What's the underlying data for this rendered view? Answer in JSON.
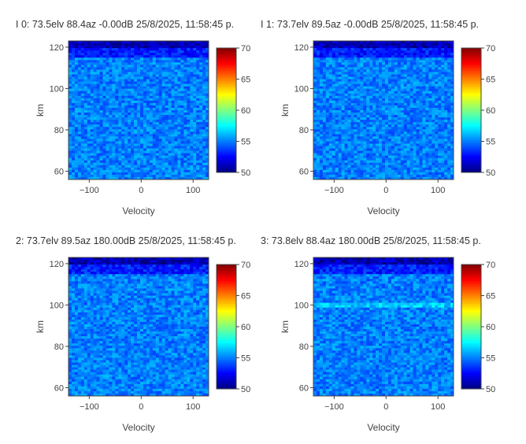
{
  "chart_data": [
    {
      "type": "heatmap",
      "title": "I 0: 73.5elv 88.4az -0.00dB 25/8/2025, 11:58:45 p.",
      "xlabel": "Velocity",
      "ylabel": "km",
      "xlim": [
        -140,
        130
      ],
      "ylim": [
        56,
        123
      ],
      "x_ticks": [
        -100,
        0,
        100
      ],
      "y_ticks": [
        60,
        80,
        100,
        120
      ],
      "colorbar": {
        "min": 50,
        "max": 70,
        "ticks": [
          50,
          55,
          60,
          65,
          70
        ],
        "colorscale": "jet"
      },
      "bands": [
        {
          "from_km": 56,
          "to_km": 115,
          "value": 55.0
        },
        {
          "from_km": 115,
          "to_km": 119,
          "value": 53.0
        },
        {
          "from_km": 119,
          "to_km": 123,
          "value": 51.0
        }
      ],
      "grid": false
    },
    {
      "type": "heatmap",
      "title": "I 1: 73.7elv 89.5az -0.00dB 25/8/2025, 11:58:45 p.",
      "xlabel": "Velocity",
      "ylabel": "km",
      "xlim": [
        -140,
        130
      ],
      "ylim": [
        56,
        123
      ],
      "x_ticks": [
        -100,
        0,
        100
      ],
      "y_ticks": [
        60,
        80,
        100,
        120
      ],
      "colorbar": {
        "min": 50,
        "max": 70,
        "ticks": [
          50,
          55,
          60,
          65,
          70
        ],
        "colorscale": "jet"
      },
      "bands": [
        {
          "from_km": 56,
          "to_km": 115,
          "value": 55.0
        },
        {
          "from_km": 115,
          "to_km": 119,
          "value": 53.0
        },
        {
          "from_km": 119,
          "to_km": 123,
          "value": 51.0
        }
      ],
      "grid": false
    },
    {
      "type": "heatmap",
      "title": "2: 73.7elv 89.5az 180.00dB 25/8/2025, 11:58:45 p.",
      "xlabel": "Velocity",
      "ylabel": "km",
      "xlim": [
        -140,
        130
      ],
      "ylim": [
        56,
        123
      ],
      "x_ticks": [
        -100,
        0,
        100
      ],
      "y_ticks": [
        60,
        80,
        100,
        120
      ],
      "colorbar": {
        "min": 50,
        "max": 70,
        "ticks": [
          50,
          55,
          60,
          65,
          70
        ],
        "colorscale": "jet"
      },
      "bands": [
        {
          "from_km": 56,
          "to_km": 115,
          "value": 55.0
        },
        {
          "from_km": 115,
          "to_km": 119,
          "value": 53.0
        },
        {
          "from_km": 119,
          "to_km": 123,
          "value": 51.0
        }
      ],
      "grid": false
    },
    {
      "type": "heatmap",
      "title": "3: 73.8elv 88.4az 180.00dB 25/8/2025, 11:58:45 p.",
      "xlabel": "Velocity",
      "ylabel": "km",
      "xlim": [
        -140,
        130
      ],
      "ylim": [
        56,
        123
      ],
      "x_ticks": [
        -100,
        0,
        100
      ],
      "y_ticks": [
        60,
        80,
        100,
        120
      ],
      "colorbar": {
        "min": 50,
        "max": 70,
        "ticks": [
          50,
          55,
          60,
          65,
          70
        ],
        "colorscale": "jet"
      },
      "bands": [
        {
          "from_km": 56,
          "to_km": 99,
          "value": 55.0
        },
        {
          "from_km": 99,
          "to_km": 101,
          "value": 56.5
        },
        {
          "from_km": 101,
          "to_km": 115,
          "value": 55.0
        },
        {
          "from_km": 115,
          "to_km": 119,
          "value": 53.0
        },
        {
          "from_km": 119,
          "to_km": 123,
          "value": 51.0
        }
      ],
      "grid": false
    }
  ]
}
